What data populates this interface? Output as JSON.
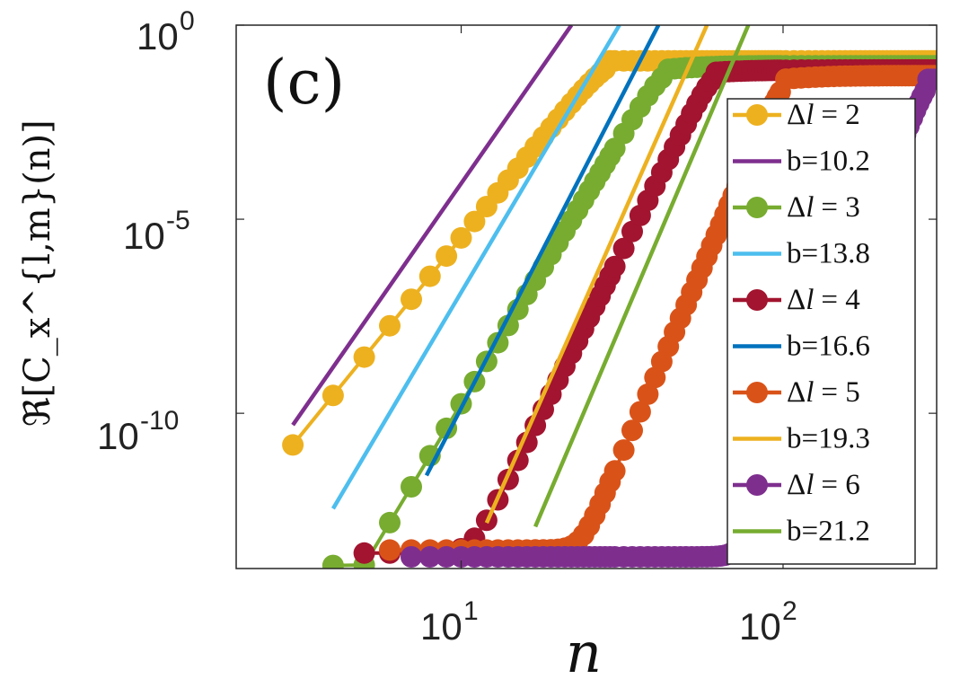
{
  "chart_data": {
    "type": "line",
    "panel_label": "(c)",
    "xlabel": "n",
    "ylabel": "ℜ[C_x^{l,m}(n)]",
    "xscale": "log",
    "yscale": "log",
    "xlim": [
      2,
      300
    ],
    "ylim": [
      1e-14,
      1
    ],
    "x_ticks": [
      {
        "value": 10,
        "base": "10",
        "exp": "1"
      },
      {
        "value": 100,
        "base": "10",
        "exp": "2"
      }
    ],
    "y_ticks": [
      {
        "value": 1,
        "base": "10",
        "exp": "0"
      },
      {
        "value": 1e-05,
        "base": "10",
        "exp": "-5"
      },
      {
        "value": 1e-10,
        "base": "10",
        "exp": "-10"
      }
    ],
    "series": [
      {
        "name": "Δl = 2",
        "delta": "2",
        "color": "#EDB120",
        "nmin": 3,
        "nflat": null,
        "floor": null,
        "peak_n": 28,
        "peak": 0.12,
        "plateau": 0.12,
        "exponent": 10.2
      },
      {
        "name": "Δl = 3",
        "delta": "3",
        "color": "#77AC30",
        "nmin": 4,
        "nflat": null,
        "floor": null,
        "peak_n": 42,
        "peak": 0.07,
        "plateau": 0.09,
        "exponent": 13.8
      },
      {
        "name": "Δl = 4",
        "delta": "4",
        "color": "#A2142F",
        "nmin": 5,
        "nflat": 6.5,
        "floor": 2.5e-14,
        "peak_n": 60,
        "peak": 0.06,
        "plateau": 0.07,
        "exponent": 16.6
      },
      {
        "name": "Δl = 5",
        "delta": "5",
        "color": "#D95319",
        "nmin": 6,
        "nflat": 11,
        "floor": 3e-14,
        "peak_n": 100,
        "peak": 0.04,
        "plateau": 0.05,
        "exponent": 19.3
      },
      {
        "name": "Δl = 6",
        "delta": "6",
        "color": "#7E2F8E",
        "nmin": 7,
        "nflat": 16.5,
        "floor": 2e-14,
        "peak_n": 280,
        "peak": 0.04,
        "plateau": 0.04,
        "exponent": 21.2
      }
    ],
    "fits": [
      {
        "name": "b=10.2",
        "color": "#7E2F8E",
        "b": 10.2,
        "x1": 3,
        "y1": 5e-11,
        "x2": 22,
        "y2": 1
      },
      {
        "name": "b=13.8",
        "color": "#4DBEEE",
        "b": 13.8,
        "x1": 4,
        "y1": 3.5e-13,
        "x2": 31,
        "y2": 1
      },
      {
        "name": "b=16.6",
        "color": "#0072BD",
        "b": 16.6,
        "x1": 7.8,
        "y1": 2.5e-12,
        "x2": 41,
        "y2": 1
      },
      {
        "name": "b=19.3",
        "color": "#EDB120",
        "b": 19.3,
        "x1": 12,
        "y1": 1.5e-13,
        "x2": 58,
        "y2": 1
      },
      {
        "name": "b=21.2",
        "color": "#77AC30",
        "b": 21.2,
        "x1": 17,
        "y1": 1.2e-13,
        "x2": 78,
        "y2": 1
      }
    ],
    "legend_position": "right",
    "legend": [
      {
        "label_prefix": "Δ",
        "label_var": "l",
        "label_value": "= 2",
        "kind": "marker",
        "color": "#EDB120"
      },
      {
        "label": "b=10.2",
        "kind": "line",
        "color": "#7E2F8E"
      },
      {
        "label_prefix": "Δ",
        "label_var": "l",
        "label_value": "= 3",
        "kind": "marker",
        "color": "#77AC30"
      },
      {
        "label": "b=13.8",
        "kind": "line",
        "color": "#4DBEEE"
      },
      {
        "label_prefix": "Δ",
        "label_var": "l",
        "label_value": "= 4",
        "kind": "marker",
        "color": "#A2142F"
      },
      {
        "label": "b=16.6",
        "kind": "line",
        "color": "#0072BD"
      },
      {
        "label_prefix": "Δ",
        "label_var": "l",
        "label_value": "= 5",
        "kind": "marker",
        "color": "#D95319"
      },
      {
        "label": "b=19.3",
        "kind": "line",
        "color": "#EDB120"
      },
      {
        "label_prefix": "Δ",
        "label_var": "l",
        "label_value": "= 6",
        "kind": "marker",
        "color": "#7E2F8E"
      },
      {
        "label": "b=21.2",
        "kind": "line",
        "color": "#77AC30"
      }
    ]
  }
}
